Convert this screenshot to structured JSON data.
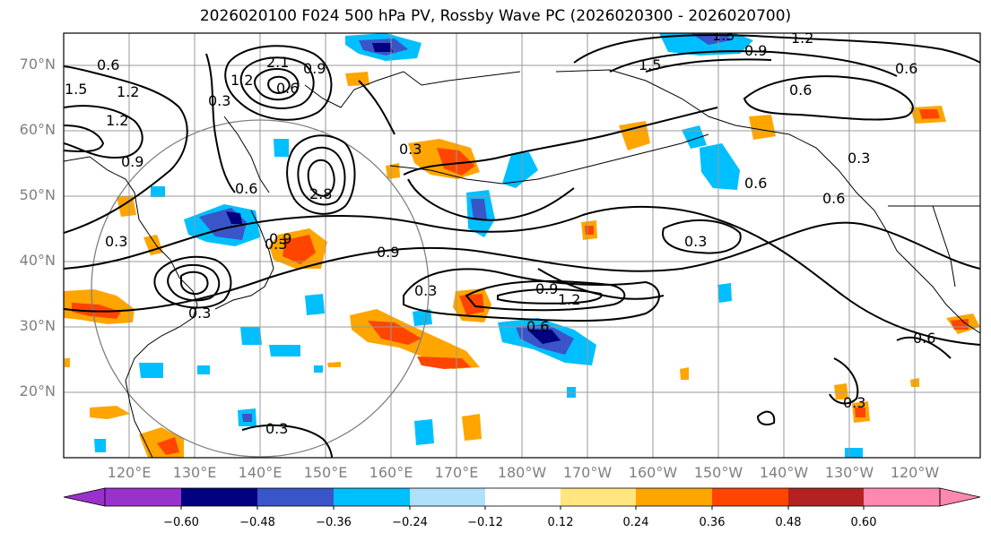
{
  "title": "2026020100 F024 500 hPa PV, Rossby Wave PC (2026020300 - 2026020700)",
  "lat_labels": [
    "70°N",
    "60°N",
    "50°N",
    "40°N",
    "30°N",
    "20°N"
  ],
  "lon_labels": [
    "120°E",
    "130°E",
    "140°E",
    "150°E",
    "160°E",
    "170°E",
    "180°W",
    "170°W",
    "160°W",
    "150°W",
    "140°W",
    "130°W",
    "120°W"
  ],
  "contour_labels": [
    "0.6",
    "1.5",
    "1.2",
    "0.9",
    "0.3",
    "0.6",
    "1.2",
    "0.3",
    "2.1",
    "2.8",
    "0.3",
    "1.5",
    "0.9",
    "0.6",
    "0.3",
    "0.6",
    "0.6",
    "0.3",
    "0.9",
    "0.3",
    "0.9",
    "1.2",
    "0.6",
    "0.3",
    "0.6",
    "0.3",
    "0.3",
    "1.2",
    "0.6",
    "0.9",
    "0.3",
    "0.6",
    "0.9",
    "1.5",
    "1.2"
  ],
  "colorbar": {
    "ticks": [
      "−0.60",
      "−0.48",
      "−0.36",
      "−0.24",
      "−0.12",
      "0.12",
      "0.24",
      "0.36",
      "0.48",
      "0.60"
    ],
    "colors": [
      "#9932cc",
      "#000080",
      "#3a55c8",
      "#00bfff",
      "#b0e0fa",
      "#ffffff",
      "#ffe680",
      "#ffa500",
      "#ff4500",
      "#b22222",
      "#ff88b0"
    ]
  }
}
